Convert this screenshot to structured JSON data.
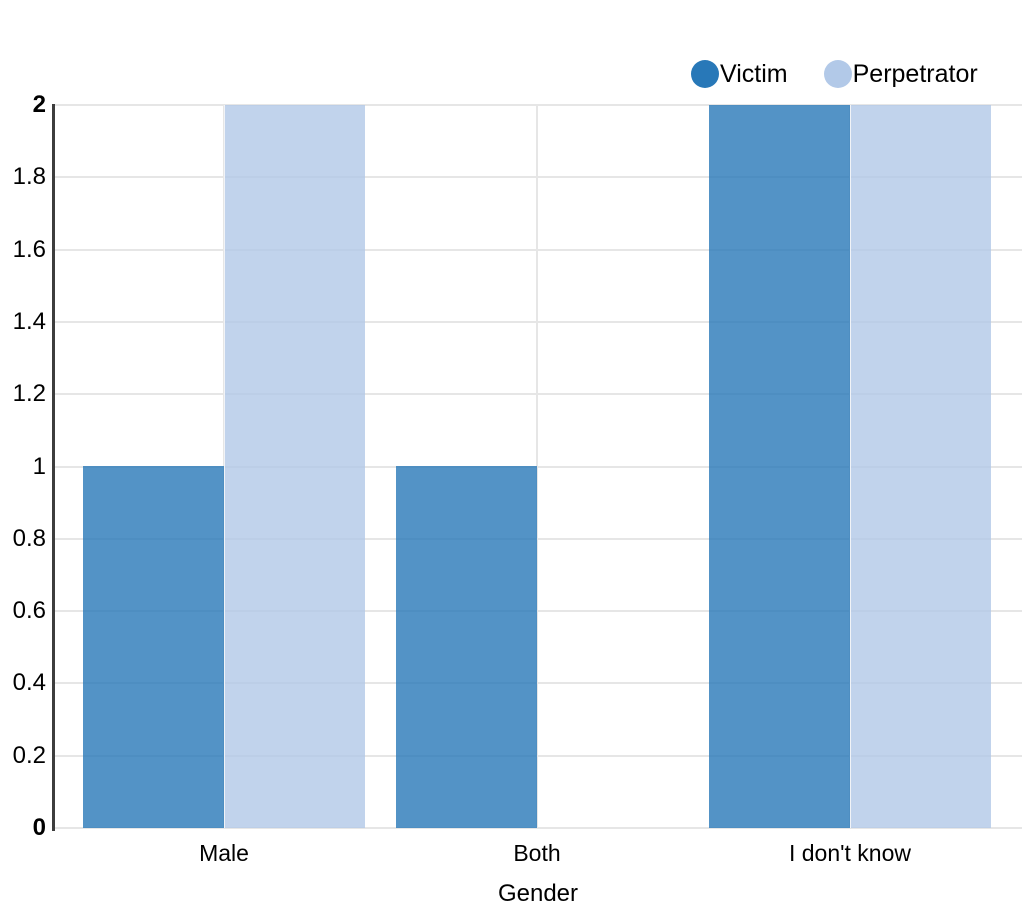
{
  "chart_data": {
    "type": "bar",
    "title": "",
    "xlabel": "Gender",
    "ylabel": "",
    "categories": [
      "Male",
      "Both",
      "I don't know"
    ],
    "series": [
      {
        "name": "Victim",
        "color": "#2878b8",
        "values": [
          1,
          1,
          2
        ]
      },
      {
        "name": "Perpetrator",
        "color": "#b2c9e8",
        "values": [
          2,
          0,
          2
        ]
      }
    ],
    "ylim": [
      0,
      2
    ],
    "yticks": [
      0,
      0.2,
      0.4,
      0.6,
      0.8,
      1,
      1.2,
      1.4,
      1.6,
      1.8,
      2
    ],
    "bold_yticks": [
      0,
      2
    ],
    "grid": true,
    "legend_position": "top-right",
    "colors": {
      "victim_bar": "#5596c5",
      "perpetrator_bar": "#c4d4eb",
      "gridline": "#e6e6e6",
      "axis_line": "#3d3d3d",
      "text": "#000000",
      "background": "#ffffff"
    }
  }
}
